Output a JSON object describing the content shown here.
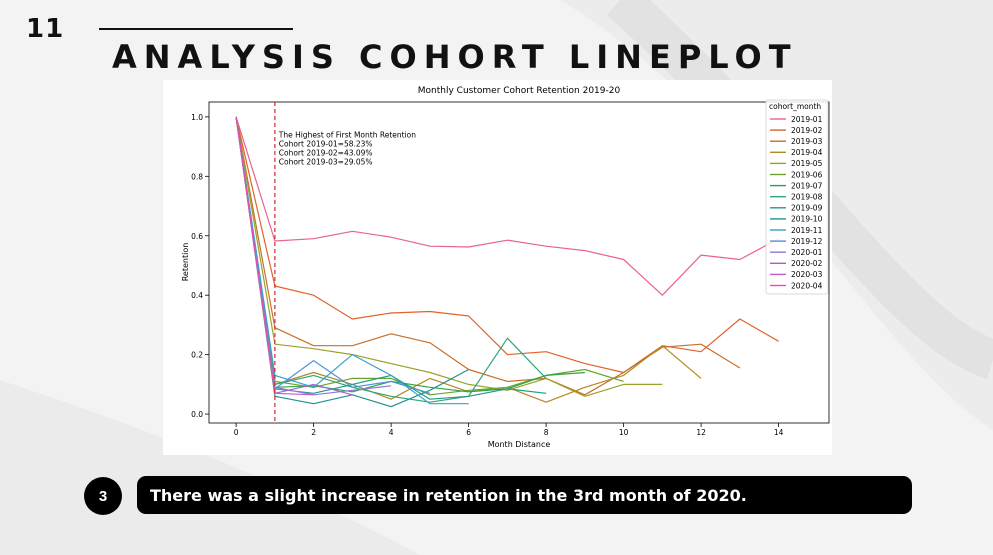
{
  "slide": {
    "number": "11",
    "title": "ANALYSIS COHORT LINEPLOT",
    "step_number": "3",
    "caption": "There was a slight increase in retention in the 3rd month of 2020."
  },
  "chart_data": {
    "type": "line",
    "title": "Monthly Customer Cohort Retention 2019-20",
    "xlabel": "Month Distance",
    "ylabel": "Retention",
    "xlim": [
      -0.7,
      15.3
    ],
    "ylim": [
      -0.03,
      1.05
    ],
    "x_ticks": [
      0,
      2,
      4,
      6,
      8,
      10,
      12,
      14
    ],
    "y_ticks": [
      0.0,
      0.2,
      0.4,
      0.6,
      0.8,
      1.0
    ],
    "grid": false,
    "legend_title": "cohort_month",
    "legend_position": "top-right",
    "vline": {
      "x": 1,
      "color": "#d62728",
      "style": "dashed"
    },
    "annotation": {
      "x": 1.1,
      "y": 0.93,
      "lines": [
        "The Highest of First Month Retention",
        "Cohort 2019-01=58.23%",
        "Cohort 2019-02=43.09%",
        "Cohort 2019-03=29.05%"
      ]
    },
    "series": [
      {
        "name": "2019-01",
        "color": "#e8628c",
        "values": [
          1.0,
          0.5823,
          0.59,
          0.615,
          0.595,
          0.565,
          0.562,
          0.585,
          0.565,
          0.55,
          0.52,
          0.4,
          0.535,
          0.52,
          0.59
        ]
      },
      {
        "name": "2019-02",
        "color": "#e0632a",
        "values": [
          1.0,
          0.4309,
          0.4,
          0.32,
          0.34,
          0.345,
          0.33,
          0.2,
          0.21,
          0.17,
          0.14,
          0.23,
          0.21,
          0.32,
          0.245
        ]
      },
      {
        "name": "2019-03",
        "color": "#c8702a",
        "values": [
          1.0,
          0.2905,
          0.23,
          0.23,
          0.27,
          0.24,
          0.15,
          0.11,
          0.12,
          0.065,
          0.14,
          0.225,
          0.235,
          0.155
        ]
      },
      {
        "name": "2019-04",
        "color": "#b38a1f",
        "values": [
          1.0,
          0.1,
          0.14,
          0.1,
          0.05,
          0.12,
          0.075,
          0.09,
          0.04,
          0.09,
          0.13,
          0.23,
          0.12
        ]
      },
      {
        "name": "2019-05",
        "color": "#9aa22a",
        "values": [
          1.0,
          0.235,
          0.22,
          0.2,
          0.17,
          0.14,
          0.1,
          0.08,
          0.12,
          0.06,
          0.1,
          0.1
        ]
      },
      {
        "name": "2019-06",
        "color": "#6aa52b",
        "values": [
          1.0,
          0.11,
          0.09,
          0.12,
          0.12,
          0.065,
          0.08,
          0.09,
          0.13,
          0.15,
          0.11
        ]
      },
      {
        "name": "2019-07",
        "color": "#32a24a",
        "values": [
          1.0,
          0.09,
          0.095,
          0.075,
          0.11,
          0.09,
          0.075,
          0.085,
          0.13,
          0.14
        ]
      },
      {
        "name": "2019-08",
        "color": "#2ea67a",
        "values": [
          1.0,
          0.1,
          0.13,
          0.09,
          0.06,
          0.04,
          0.06,
          0.255,
          0.12
        ]
      },
      {
        "name": "2019-09",
        "color": "#229a8a",
        "values": [
          1.0,
          0.085,
          0.07,
          0.1,
          0.13,
          0.05,
          0.06,
          0.085,
          0.07
        ]
      },
      {
        "name": "2019-10",
        "color": "#22938f",
        "values": [
          1.0,
          0.06,
          0.035,
          0.065,
          0.025,
          0.08,
          0.15
        ]
      },
      {
        "name": "2019-11",
        "color": "#3aa0c8",
        "values": [
          1.0,
          0.13,
          0.09,
          0.2,
          0.13,
          0.035,
          0.035
        ]
      },
      {
        "name": "2019-12",
        "color": "#4e93d8",
        "values": [
          1.0,
          0.085,
          0.18,
          0.09,
          0.11,
          0.07
        ]
      },
      {
        "name": "2020-01",
        "color": "#8e7ad9",
        "values": [
          1.0,
          0.09,
          0.065,
          0.08,
          0.095
        ]
      },
      {
        "name": "2020-02",
        "color": "#a463d3",
        "values": [
          1.0,
          0.07,
          0.1,
          0.065
        ]
      },
      {
        "name": "2020-03",
        "color": "#c45bc8",
        "values": [
          1.0,
          0.07,
          0.065
        ]
      },
      {
        "name": "2020-04",
        "color": "#e054a6",
        "values": [
          1.0,
          0.075
        ]
      }
    ]
  }
}
